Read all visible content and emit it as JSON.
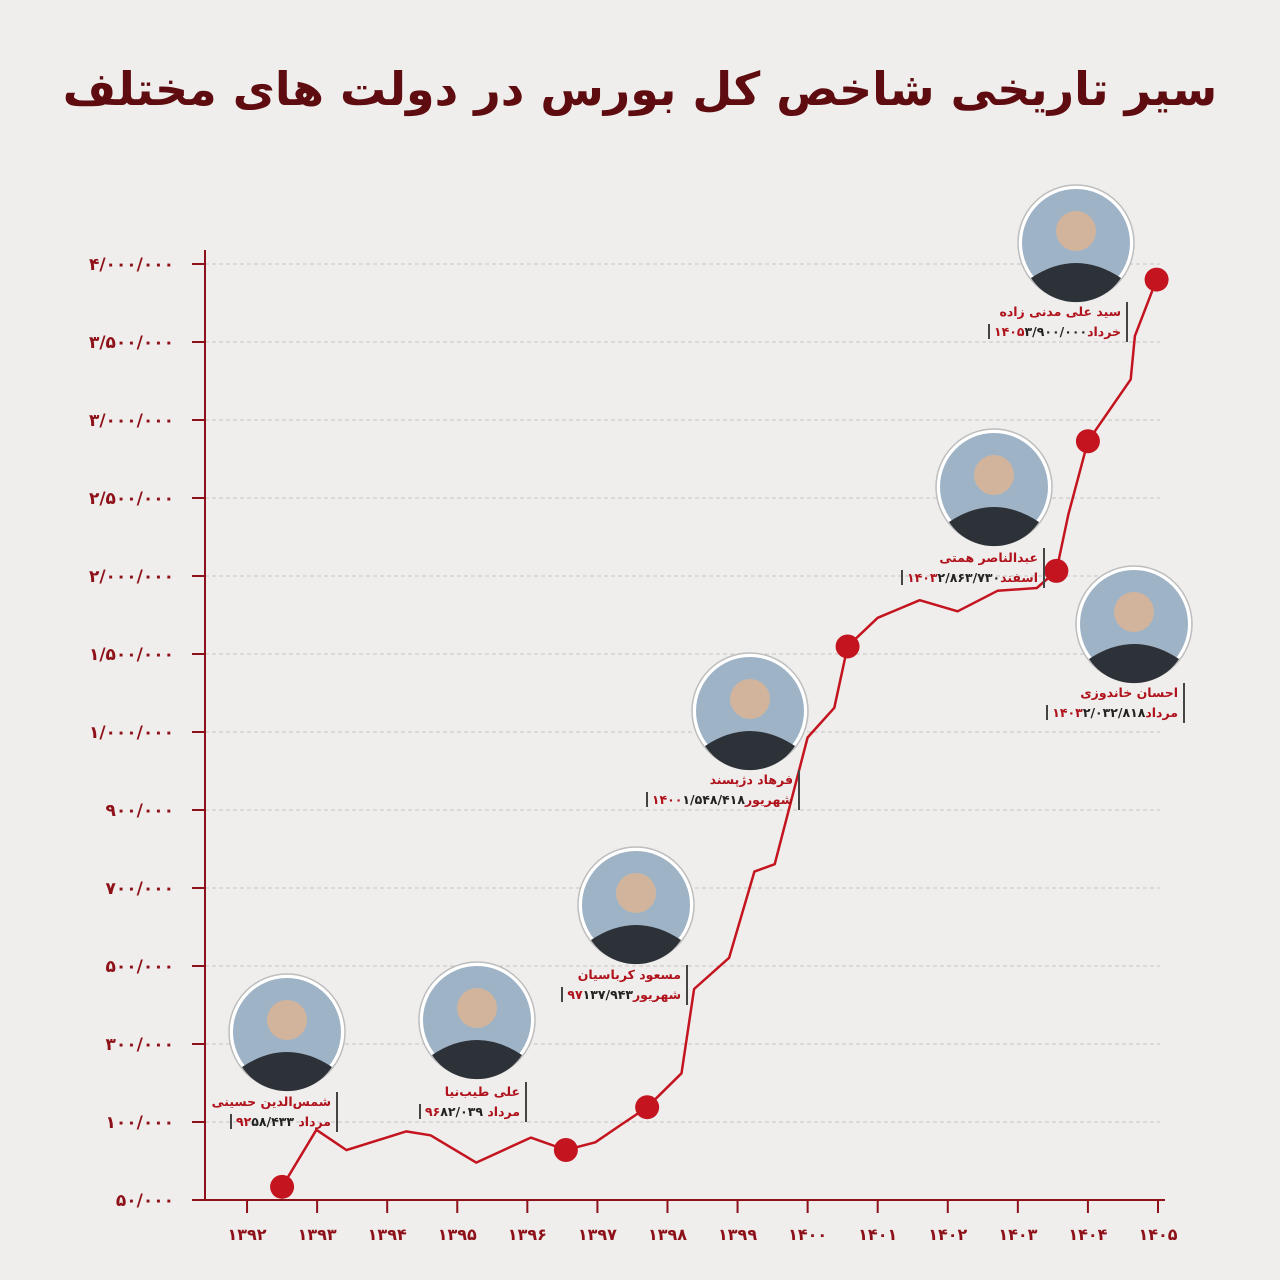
{
  "chart_data": {
    "type": "line",
    "title": "سیر تاریخی شاخص کل بورس در دولت های مختلف",
    "color": "#c3141f",
    "grid": true,
    "yscale": "piecewise",
    "xlim": [
      1391.4,
      1405.1
    ],
    "xticks": [
      {
        "value": 1392,
        "label": "۱۳۹۲"
      },
      {
        "value": 1393,
        "label": "۱۳۹۳"
      },
      {
        "value": 1394,
        "label": "۱۳۹۴"
      },
      {
        "value": 1395,
        "label": "۱۳۹۵"
      },
      {
        "value": 1396,
        "label": "۱۳۹۶"
      },
      {
        "value": 1397,
        "label": "۱۳۹۷"
      },
      {
        "value": 1398,
        "label": "۱۳۹۸"
      },
      {
        "value": 1399,
        "label": "۱۳۹۹"
      },
      {
        "value": 1400,
        "label": "۱۴۰۰"
      },
      {
        "value": 1401,
        "label": "۱۴۰۱"
      },
      {
        "value": 1402,
        "label": "۱۴۰۲"
      },
      {
        "value": 1403,
        "label": "۱۴۰۳"
      },
      {
        "value": 1404,
        "label": "۱۴۰۴"
      },
      {
        "value": 1405,
        "label": "۱۴۰۵"
      }
    ],
    "ylim": [
      50000,
      4000000
    ],
    "yticks": [
      {
        "value": 50000,
        "label": "۵۰/۰۰۰"
      },
      {
        "value": 100000,
        "label": "۱۰۰/۰۰۰"
      },
      {
        "value": 300000,
        "label": "۳۰۰/۰۰۰"
      },
      {
        "value": 500000,
        "label": "۵۰۰/۰۰۰"
      },
      {
        "value": 700000,
        "label": "۷۰۰/۰۰۰"
      },
      {
        "value": 900000,
        "label": "۹۰۰/۰۰۰"
      },
      {
        "value": 1000000,
        "label": "۱/۰۰۰/۰۰۰"
      },
      {
        "value": 1500000,
        "label": "۱/۵۰۰/۰۰۰"
      },
      {
        "value": 2000000,
        "label": "۲/۰۰۰/۰۰۰"
      },
      {
        "value": 2500000,
        "label": "۲/۵۰۰/۰۰۰"
      },
      {
        "value": 3000000,
        "label": "۳/۰۰۰/۰۰۰"
      },
      {
        "value": 3500000,
        "label": "۳/۵۰۰/۰۰۰"
      },
      {
        "value": 4000000,
        "label": "۴/۰۰۰/۰۰۰"
      }
    ],
    "x": [
      1392.5,
      1392.99,
      1393.42,
      1394.27,
      1394.62,
      1395.27,
      1396.05,
      1396.55,
      1396.97,
      1397.33,
      1397.71,
      1398.2,
      1398.38,
      1398.88,
      1399.24,
      1399.53,
      1400.0,
      1400.38,
      1400.57,
      1401.0,
      1401.6,
      1402.14,
      1402.71,
      1403.27,
      1403.55,
      1403.72,
      1404.0,
      1404.61,
      1404.67,
      1404.98
    ],
    "values": [
      58433,
      95000,
      82000,
      94000,
      91500,
      74000,
      90000,
      82039,
      87000,
      98000,
      137943,
      225000,
      441000,
      521000,
      742000,
      761000,
      993000,
      1155000,
      1548418,
      1732000,
      1845000,
      1774000,
      1905000,
      1923000,
      2032818,
      2393000,
      2863730,
      3260000,
      3539000,
      3900000
    ],
    "highlights": {
      "x": [
        1392.5,
        1396.55,
        1397.71,
        1400.57,
        1403.55,
        1404.0,
        1404.98
      ],
      "values": [
        58433,
        82039,
        137943,
        1548418,
        2032818,
        2863730,
        3900000
      ],
      "value_labels": [
        "۵۸/۴۳۳",
        "۸۲/۰۳۹",
        "۱۳۷/۹۴۳",
        "۱/۵۴۸/۴۱۸",
        "۲/۰۳۲/۸۱۸",
        "۲/۸۶۳/۷۳۰",
        "۳/۹۰۰/۰۰۰"
      ],
      "names": [
        "شمس‌الدین حسینی",
        "علی طیب‌نیا",
        "مسعود کرباسیان",
        "فرهاد دژپسند",
        "احسان خاندوزی",
        "عبدالناصر همتی",
        "سید علی مدنی زاده"
      ],
      "dates": [
        "مرداد ۹۲",
        "مرداد ۹۶",
        "شهریور۹۷",
        "شهریور۱۴۰۰",
        "مرداد۱۴۰۳",
        "اسفند۱۴۰۳",
        "خرداد۱۴۰۵"
      ]
    }
  }
}
